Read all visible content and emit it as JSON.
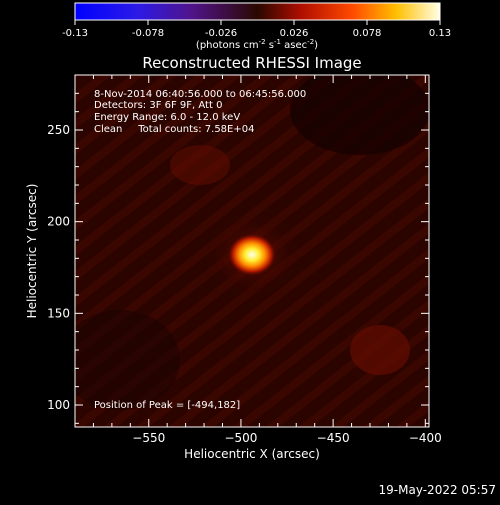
{
  "colorbar": {
    "tick_labels": [
      "-0.13",
      "-0.078",
      "-0.026",
      "0.026",
      "0.078",
      "0.13"
    ],
    "min": -0.13,
    "max": 0.13,
    "units_parts": [
      "(photons cm",
      "-2",
      " s",
      "-1",
      " asec",
      "-2",
      ")"
    ]
  },
  "chart_data": {
    "type": "heatmap",
    "title": "Reconstructed RHESSI Image",
    "xlabel": "Heliocentric X (arcsec)",
    "ylabel": "Heliocentric Y (arcsec)",
    "xlim": [
      -590,
      -398
    ],
    "ylim": [
      88,
      280
    ],
    "xticks": [
      -550,
      -500,
      -450,
      -400
    ],
    "yticks": [
      100,
      150,
      200,
      250
    ],
    "xtick_labels": [
      "−550",
      "−500",
      "−450",
      "−400"
    ],
    "ytick_labels": [
      "100",
      "150",
      "200",
      "250"
    ],
    "annotations": [
      "8-Nov-2014 06:40:56.000 to 06:45:56.000",
      "Detectors: 3F 6F 9F, Att 0",
      "Energy Range: 6.0 - 12.0 keV",
      "Clean     Total counts: 7.58E+04"
    ],
    "peak_label": "Position of Peak = [-494,182]",
    "peak": {
      "x": -494,
      "y": 182
    },
    "colormap": "hot"
  },
  "footer": {
    "timestamp": "19-May-2022 05:57"
  }
}
